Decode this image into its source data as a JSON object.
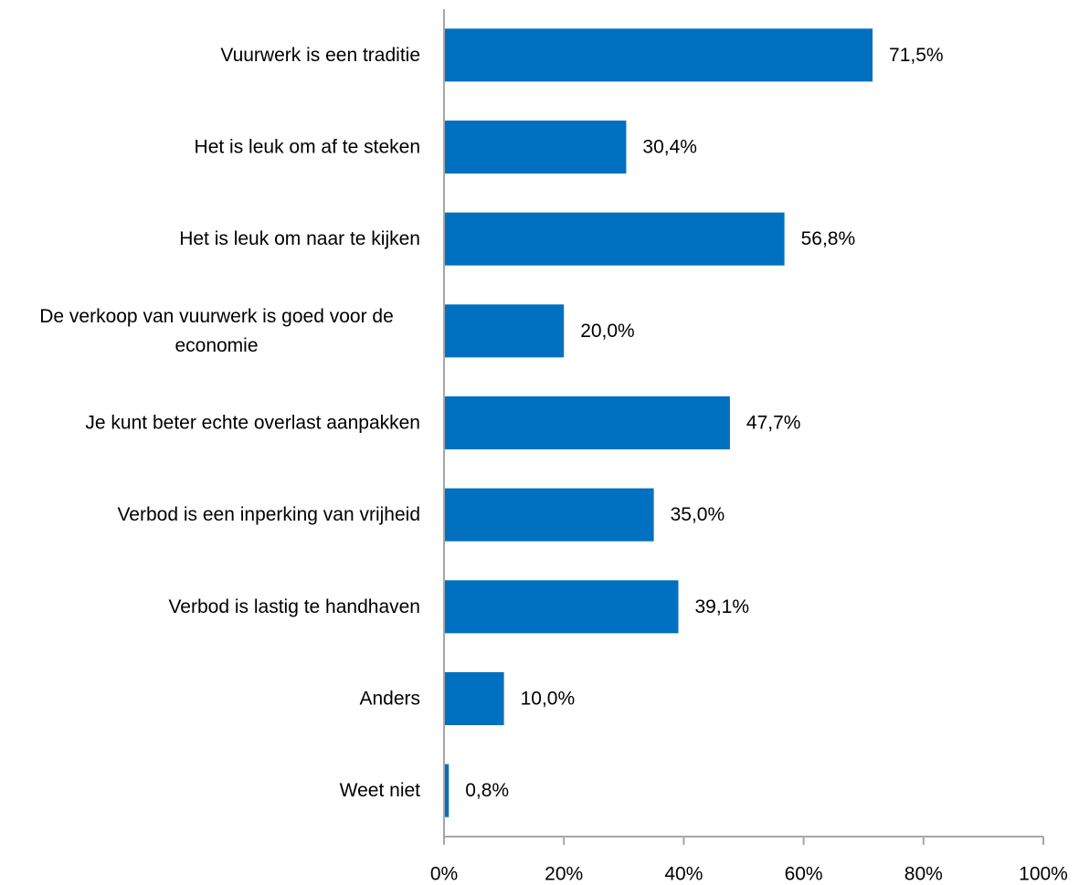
{
  "chart_data": {
    "type": "bar",
    "orientation": "horizontal",
    "title": "",
    "xlabel": "",
    "ylabel": "",
    "categories": [
      [
        "Vuurwerk is een traditie"
      ],
      [
        "Het is leuk om af te steken"
      ],
      [
        "Het is leuk om naar te kijken"
      ],
      [
        "De verkoop van vuurwerk is goed voor de",
        "economie"
      ],
      [
        "Je kunt beter echte overlast aanpakken"
      ],
      [
        "Verbod is een inperking van vrijheid"
      ],
      [
        "Verbod is lastig te handhaven"
      ],
      [
        "Anders"
      ],
      [
        "Weet niet"
      ]
    ],
    "values": [
      71.5,
      30.4,
      56.8,
      20.0,
      47.7,
      35.0,
      39.1,
      10.0,
      0.8
    ],
    "value_labels": [
      "71,5%",
      "30,4%",
      "56,8%",
      "20,0%",
      "47,7%",
      "35,0%",
      "39,1%",
      "10,0%",
      "0,8%"
    ],
    "xlim": [
      0,
      100
    ],
    "xticks": [
      0,
      20,
      40,
      60,
      80,
      100
    ],
    "xtick_labels": [
      "0%",
      "20%",
      "40%",
      "60%",
      "80%",
      "100%"
    ],
    "grid": false,
    "legend": "none",
    "bar_color": "#0070C0",
    "axis_color": "#A6A6A6"
  }
}
